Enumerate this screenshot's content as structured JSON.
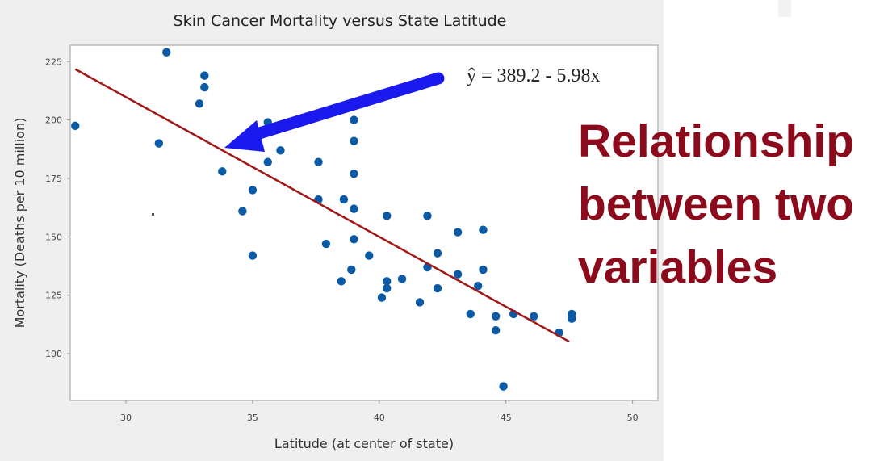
{
  "headline": {
    "lines": [
      "Relationship",
      "between two",
      "variables"
    ],
    "color": "#8b0b1c"
  },
  "chart_data": {
    "type": "scatter",
    "title": "Skin Cancer Mortality versus State Latitude",
    "xlabel": "Latitude (at center of state)",
    "ylabel": "Mortality (Deaths per 10 million)",
    "xlim": [
      27.8,
      51
    ],
    "ylim": [
      80,
      232
    ],
    "xticks": [
      30,
      35,
      40,
      45,
      50
    ],
    "yticks": [
      100,
      125,
      150,
      175,
      200,
      225
    ],
    "grid": false,
    "point_color": "#0b5aa6",
    "line_color": "#a01818",
    "arrow_color": "#1a1aee",
    "regression": {
      "equation": "ŷ = 389.2 - 5.98x",
      "intercept": 389.2,
      "slope": -5.98,
      "x_range": [
        28,
        47.5
      ]
    },
    "points": [
      [
        28.0,
        197.5
      ],
      [
        31.6,
        229
      ],
      [
        33.1,
        219
      ],
      [
        33.1,
        214
      ],
      [
        32.9,
        207
      ],
      [
        31.3,
        190
      ],
      [
        35.6,
        199
      ],
      [
        33.8,
        178
      ],
      [
        35.0,
        170
      ],
      [
        34.6,
        161
      ],
      [
        35.0,
        142
      ],
      [
        35.6,
        182
      ],
      [
        36.1,
        187
      ],
      [
        37.6,
        182
      ],
      [
        37.6,
        166
      ],
      [
        37.9,
        147
      ],
      [
        38.6,
        166
      ],
      [
        38.5,
        131
      ],
      [
        38.9,
        136
      ],
      [
        39.0,
        200
      ],
      [
        39.0,
        191
      ],
      [
        39.0,
        177
      ],
      [
        39.0,
        162
      ],
      [
        39.0,
        149
      ],
      [
        39.6,
        142
      ],
      [
        40.3,
        159
      ],
      [
        41.9,
        159
      ],
      [
        43.1,
        152
      ],
      [
        44.1,
        153
      ],
      [
        40.3,
        131
      ],
      [
        40.3,
        128
      ],
      [
        40.9,
        132
      ],
      [
        40.1,
        124
      ],
      [
        41.6,
        122
      ],
      [
        41.9,
        137
      ],
      [
        42.3,
        143
      ],
      [
        42.3,
        128
      ],
      [
        43.1,
        134
      ],
      [
        44.1,
        136
      ],
      [
        43.9,
        129
      ],
      [
        43.6,
        117
      ],
      [
        44.6,
        116
      ],
      [
        44.6,
        110
      ],
      [
        45.3,
        117
      ],
      [
        46.1,
        116
      ],
      [
        47.1,
        109
      ],
      [
        47.6,
        117
      ],
      [
        47.6,
        115
      ],
      [
        44.9,
        86
      ]
    ]
  }
}
